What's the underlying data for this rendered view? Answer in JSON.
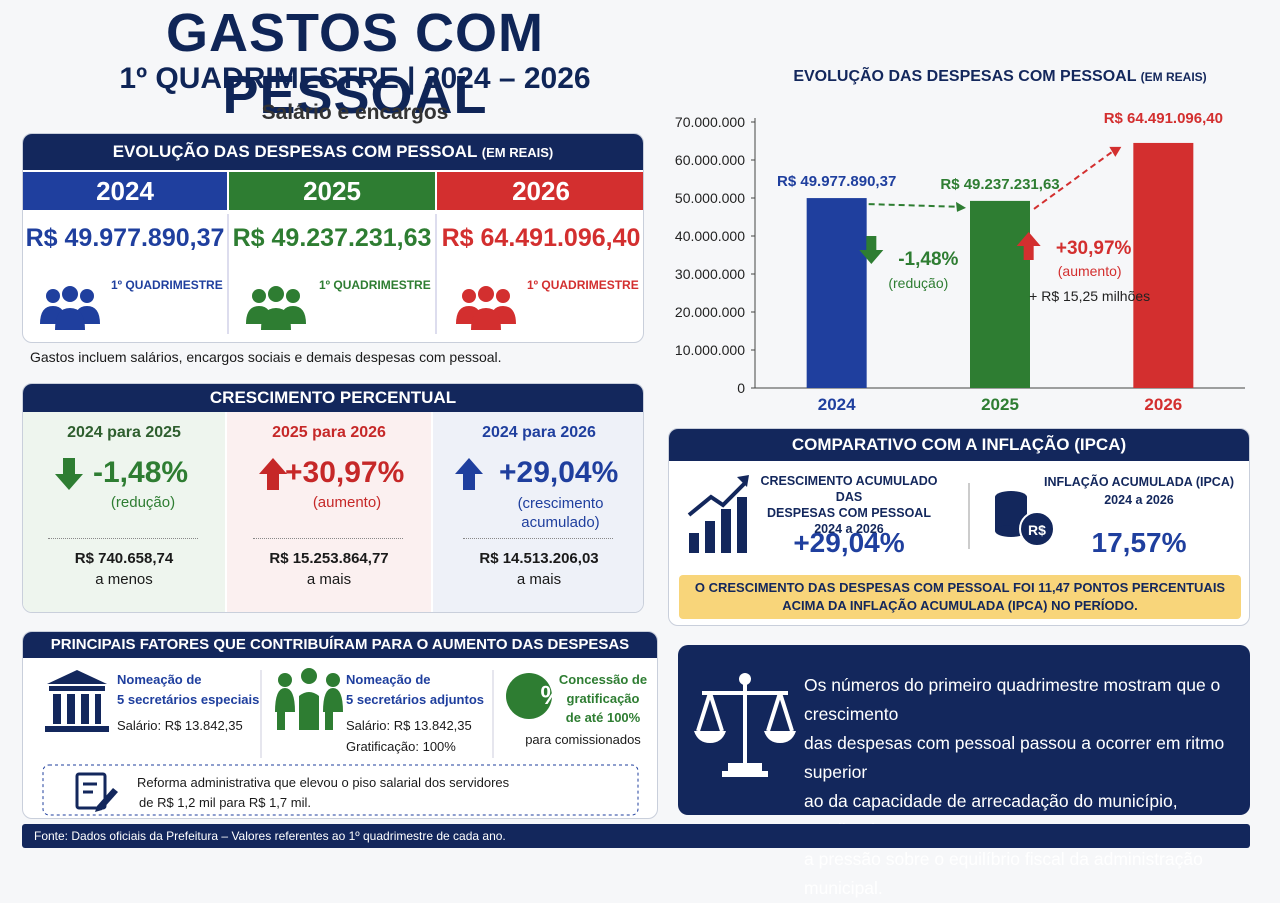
{
  "header": {
    "title": "GASTOS COM PESSOAL",
    "subtitle": "1º QUADRIMESTRE | 2024 – 2026",
    "note": "Salário e encargos"
  },
  "evolution": {
    "title": "EVOLUÇÃO DAS DESPESAS COM PESSOAL",
    "title_unit": "(EM REAIS)",
    "years": [
      {
        "year": "2024",
        "amount": "R$ 49.977.890,37",
        "period": "1º QUADRIMESTRE"
      },
      {
        "year": "2025",
        "amount": "R$ 49.237.231,63",
        "period": "1º QUADRIMESTRE"
      },
      {
        "year": "2026",
        "amount": "R$ 64.491.096,40",
        "period": "1º QUADRIMESTRE"
      }
    ],
    "note": "Gastos incluem salários, encargos sociais e demais despesas com pessoal."
  },
  "growth": {
    "title": "CRESCIMENTO PERCENTUAL",
    "items": [
      {
        "label": "2024 para 2025",
        "percent": "-1,48%",
        "kind": "(redução)",
        "amount": "R$ 740.658,74",
        "direction": "a menos"
      },
      {
        "label": "2025 para 2026",
        "percent": "+30,97%",
        "kind": "(aumento)",
        "amount": "R$ 15.253.864,77",
        "direction": "a mais"
      },
      {
        "label": "2024 para 2026",
        "percent": "+29,04%",
        "kind": "(crescimento acumulado)",
        "amount": "R$ 14.513.206,03",
        "direction": "a mais"
      }
    ]
  },
  "factors": {
    "title": "PRINCIPAIS FATORES QUE CONTRIBUÍRAM PARA O AUMENTO DAS DESPESAS",
    "items": [
      {
        "title": [
          "Nomeação de",
          "5 secretários especiais"
        ],
        "salary": "Salário: R$ 13.842,35"
      },
      {
        "title": [
          "Nomeação de",
          "5 secretários adjuntos"
        ],
        "salary": "Salário: R$ 13.842,35",
        "bonus": "Gratificação: 100%"
      },
      {
        "icon_text": "%",
        "title": [
          "Concessão de",
          "gratificação",
          "de até 100%"
        ],
        "note": "para comissionados"
      }
    ],
    "reform": [
      "Reforma administrativa que elevou o piso salarial dos servidores",
      "de R$ 1,2 mil para R$ 1,7 mil."
    ]
  },
  "chart_data": {
    "type": "bar",
    "title": "EVOLUÇÃO DAS DESPESAS COM PESSOAL",
    "title_unit": "(EM REAIS)",
    "categories": [
      "2024",
      "2025",
      "2026"
    ],
    "values": [
      49977890.37,
      49237231.63,
      64491096.4
    ],
    "value_labels": [
      "R$ 49.977.890,37",
      "R$ 49.237.231,63",
      "R$ 64.491.096,40"
    ],
    "colors": [
      "#1f3f9e",
      "#2e7d32",
      "#d32f2f"
    ],
    "ylim": [
      0,
      70000000
    ],
    "yticks": [
      0,
      {
        "value": 10000000,
        "label": "10.000.000"
      },
      {
        "value": 20000000,
        "label": "20.000.000"
      },
      {
        "value": 30000000,
        "label": "30.000.000"
      },
      {
        "value": 40000000,
        "label": "40.000.000"
      },
      {
        "value": 50000000,
        "label": "50.000.000"
      },
      {
        "value": 60000000,
        "label": "60.000.000"
      },
      {
        "value": 70000000,
        "label": "70.000.000"
      }
    ],
    "grid": false,
    "annotations": [
      {
        "text": "-1,48%",
        "note": "(redução)"
      },
      {
        "text": "+30,97%",
        "note": "(aumento)",
        "extra": "+ R$ 15,25 milhões"
      }
    ]
  },
  "inflation": {
    "title": "COMPARATIVO COM A INFLAÇÃO (IPCA)",
    "left": {
      "label": [
        "CRESCIMENTO ACUMULADO DAS",
        "DESPESAS COM PESSOAL",
        "2024 a 2026"
      ],
      "value": "+29,04%"
    },
    "right": {
      "icon_text": "R$",
      "label": [
        "INFLAÇÃO ACUMULADA (IPCA)",
        "2024 a 2026"
      ],
      "value": "17,57%"
    },
    "banner": [
      "O CRESCIMENTO DAS DESPESAS COM PESSOAL FOI 11,47 PONTOS PERCENTUAIS",
      "ACIMA DA INFLAÇÃO ACUMULADA (IPCA) NO PERÍODO."
    ]
  },
  "conclusion": [
    "Os números do primeiro quadrimestre mostram que o crescimento",
    "das despesas com pessoal passou a ocorrer em ritmo superior",
    "ao da capacidade de arrecadação do município, ampliando",
    "a pressão sobre o equilíbrio fiscal da administração municipal."
  ],
  "source": "Fonte: Dados oficiais da Prefeitura – Valores referentes ao 1º quadrimestre de cada ano."
}
